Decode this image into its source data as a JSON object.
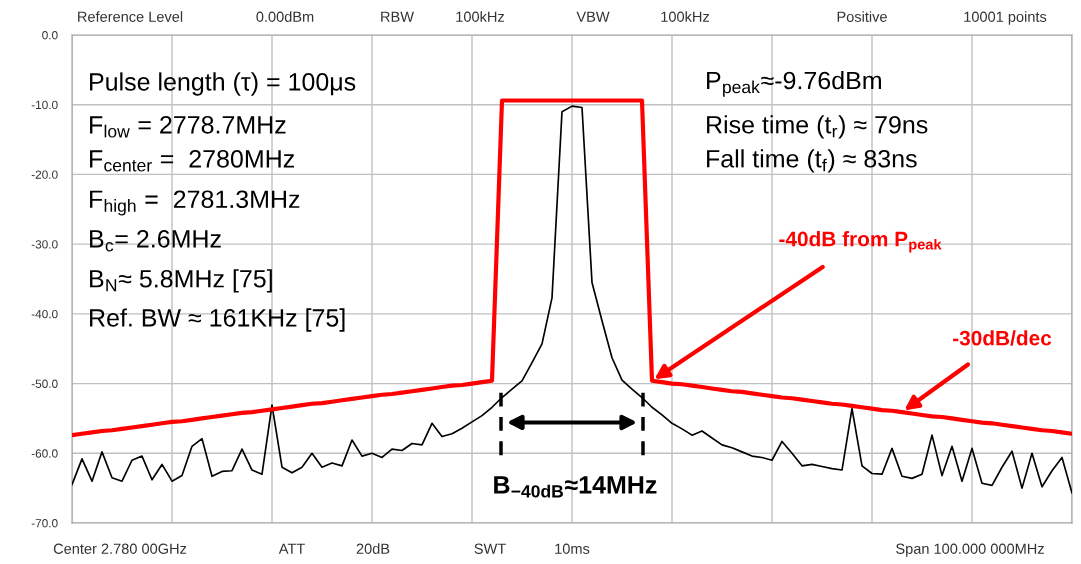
{
  "chart_data": {
    "type": "line",
    "annotations": [
      "Reference Level",
      "0.00dBm",
      "RBW",
      "100kHz",
      "VBW",
      "100kHz",
      "Positive",
      "10001 points",
      "Center 2.780 00GHz",
      "ATT",
      "20dB",
      "SWT",
      "10ms",
      "Span 100.000 000MHz",
      "Pulse length (τ) = 100μs",
      "F$_{low}$ = 2778.7MHz",
      "F$_{center}$ =  2780MHz",
      "F$_{high}$ =  2781.3MHz",
      "B$_{c}$= 2.6MHz",
      "B$_{N}$≈ 5.8MHz [75]",
      "Ref. BW ≈ 161KHz [75]",
      "P$_{peak}$≈-9.76dBm",
      "Rise time (t$_{r}$) ≈ 79ns",
      "Fall time (t$_{f}$) ≈ 83ns",
      "-40dB from P$_{peak}$",
      "-30dB/dec",
      "B$_{−40dB}$≈14MHz"
    ],
    "categories": [
      null,
      null,
      null,
      null,
      null,
      null,
      null,
      null,
      null,
      null,
      null,
      null,
      null,
      null,
      null,
      null,
      null,
      null,
      null,
      null,
      null,
      null,
      null,
      null,
      null,
      null,
      null,
      null,
      null,
      null,
      null,
      null,
      null,
      null,
      null,
      null,
      null,
      null,
      null,
      null,
      null,
      null,
      null,
      null,
      null,
      null,
      null,
      null,
      null,
      null,
      null,
      null,
      null,
      null,
      null,
      null,
      null,
      null,
      null,
      null,
      null,
      null,
      null,
      null,
      null,
      null,
      null,
      null,
      null,
      null,
      null,
      null,
      null,
      null,
      null,
      null,
      null,
      null,
      null,
      null,
      null,
      null,
      null,
      null,
      null,
      null,
      null,
      null,
      null,
      null,
      null,
      null,
      null,
      null,
      null,
      null,
      null,
      null,
      null,
      null,
      null
    ],
    "ylim": [
      -70,
      0
    ],
    "yticks": [
      {
        "value": 0,
        "label": "0.0"
      },
      {
        "value": -10,
        "label": "-10.0"
      },
      {
        "value": -20,
        "label": "-20.0"
      },
      {
        "value": -30,
        "label": "-30.0"
      },
      {
        "value": -40,
        "label": "-40.0"
      },
      {
        "value": -50,
        "label": "-50.0"
      },
      {
        "value": -60,
        "label": "-60.0"
      },
      {
        "value": -70,
        "label": "-70.0"
      }
    ],
    "tick_labels": "y",
    "grid": true,
    "series": [
      {
        "color": "#000000",
        "values": [
          -64.5,
          -60.8,
          -64.0,
          -59.8,
          -63.5,
          -64.0,
          -61.0,
          -60.4,
          -63.8,
          -61.6,
          -64.0,
          -63.2,
          -59.0,
          -57.9,
          -63.3,
          -62.6,
          -62.5,
          -59.4,
          -62.4,
          -63.0,
          -53.1,
          -62.0,
          -62.8,
          -62.0,
          -60.0,
          -62.0,
          -61.4,
          -61.8,
          -58.1,
          -60.4,
          -60.0,
          -60.6,
          -59.4,
          -59.6,
          -58.6,
          -58.8,
          -55.7,
          -57.6,
          -57.2,
          -56.4,
          -55.5,
          -54.6,
          -53.4,
          -52.0,
          -50.8,
          -49.6,
          -47.0,
          -44.3,
          -37.7,
          -11.0,
          -10.2,
          -10.4,
          -35.5,
          -41.0,
          -46.3,
          -49.5,
          -50.8,
          -52.0,
          -53.4,
          -54.5,
          -55.7,
          -56.5,
          -57.4,
          -56.8,
          -57.8,
          -58.8,
          -59.2,
          -59.8,
          -60.4,
          -60.6,
          -61.0,
          -58.3,
          -60.0,
          -61.8,
          -61.6,
          -61.9,
          -62.2,
          -62.4,
          -53.6,
          -61.8,
          -62.9,
          -63.0,
          -59.3,
          -63.3,
          -63.6,
          -63.0,
          -57.4,
          -63.2,
          -59.0,
          -64.0,
          -59.3,
          -64.3,
          -64.6,
          -62.0,
          -59.7,
          -65.0,
          -60.0,
          -64.8,
          -62.5,
          -60.6,
          -65.7
        ]
      },
      {
        "color": "#ff0000",
        "values": [
          -57.4,
          -57.2,
          -57.0,
          -56.8,
          -56.7,
          -56.5,
          -56.3,
          -56.1,
          -55.9,
          -55.7,
          -55.5,
          -55.4,
          -55.2,
          -55.0,
          -54.8,
          -54.6,
          -54.4,
          -54.2,
          -54.1,
          -53.9,
          -53.7,
          -53.5,
          -53.3,
          -53.1,
          -52.9,
          -52.8,
          -52.6,
          -52.4,
          -52.2,
          -52.0,
          -51.8,
          -51.6,
          -51.5,
          -51.3,
          -51.1,
          -50.9,
          -50.7,
          -50.5,
          -50.3,
          -50.2,
          -50.0,
          -49.8,
          -49.6,
          -9.4,
          -9.4,
          -9.4,
          -9.4,
          -9.4,
          -9.4,
          -9.4,
          -9.4,
          -9.4,
          -9.4,
          -9.4,
          -9.4,
          -9.4,
          -9.4,
          -9.4,
          -49.6,
          -49.8,
          -50.0,
          -50.1,
          -50.3,
          -50.5,
          -50.7,
          -50.9,
          -51.1,
          -51.2,
          -51.4,
          -51.6,
          -51.8,
          -52.0,
          -52.1,
          -52.3,
          -52.5,
          -52.7,
          -52.9,
          -53.0,
          -53.2,
          -53.4,
          -53.6,
          -53.8,
          -53.9,
          -54.1,
          -54.3,
          -54.5,
          -54.7,
          -54.8,
          -55.0,
          -55.2,
          -55.4,
          -55.6,
          -55.7,
          -55.9,
          -56.1,
          -56.3,
          -56.5,
          -56.7,
          -56.8,
          -57.0,
          -57.2
        ]
      }
    ]
  }
}
